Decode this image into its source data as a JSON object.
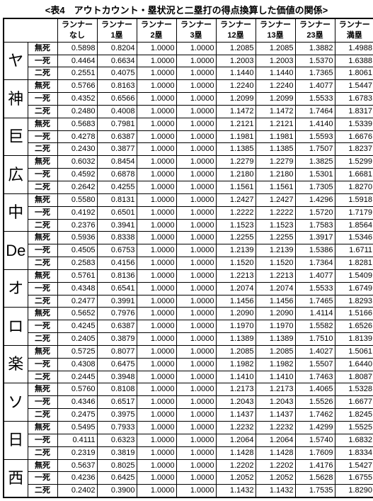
{
  "title": "<表4　アウトカウント・塁状況と二塁打の得点換算した価値の関係>",
  "columns": [
    {
      "l1": "ランナー",
      "l2": "なし"
    },
    {
      "l1": "ランナー",
      "l2": "1塁"
    },
    {
      "l1": "ランナー",
      "l2": "2塁"
    },
    {
      "l1": "ランナー",
      "l2": "3塁"
    },
    {
      "l1": "ランナー",
      "l2": "12塁"
    },
    {
      "l1": "ランナー",
      "l2": "13塁"
    },
    {
      "l1": "ランナー",
      "l2": "23塁"
    },
    {
      "l1": "ランナー",
      "l2": "満塁"
    }
  ],
  "outs": [
    "無死",
    "一死",
    "二死"
  ],
  "teams": [
    {
      "name": "ヤ",
      "rows": [
        [
          "0.5898",
          "0.8204",
          "1.0000",
          "1.0000",
          "1.2085",
          "1.2085",
          "1.3882",
          "1.4988"
        ],
        [
          "0.4464",
          "0.6634",
          "1.0000",
          "1.0000",
          "1.2003",
          "1.2003",
          "1.5370",
          "1.6388"
        ],
        [
          "0.2551",
          "0.4075",
          "1.0000",
          "1.0000",
          "1.1440",
          "1.1440",
          "1.7365",
          "1.8061"
        ]
      ]
    },
    {
      "name": "神",
      "rows": [
        [
          "0.5766",
          "0.8163",
          "1.0000",
          "1.0000",
          "1.2240",
          "1.2240",
          "1.4077",
          "1.5447"
        ],
        [
          "0.4352",
          "0.6566",
          "1.0000",
          "1.0000",
          "1.2099",
          "1.2099",
          "1.5533",
          "1.6783"
        ],
        [
          "0.2480",
          "0.4008",
          "1.0000",
          "1.0000",
          "1.1472",
          "1.1472",
          "1.7464",
          "1.8317"
        ]
      ]
    },
    {
      "name": "巨",
      "rows": [
        [
          "0.5683",
          "0.7981",
          "1.0000",
          "1.0000",
          "1.2121",
          "1.2121",
          "1.4140",
          "1.5339"
        ],
        [
          "0.4278",
          "0.6387",
          "1.0000",
          "1.0000",
          "1.1981",
          "1.1981",
          "1.5593",
          "1.6676"
        ],
        [
          "0.2430",
          "0.3877",
          "1.0000",
          "1.0000",
          "1.1385",
          "1.1385",
          "1.7507",
          "1.8237"
        ]
      ]
    },
    {
      "name": "広",
      "rows": [
        [
          "0.6032",
          "0.8454",
          "1.0000",
          "1.0000",
          "1.2279",
          "1.2279",
          "1.3825",
          "1.5299"
        ],
        [
          "0.4592",
          "0.6878",
          "1.0000",
          "1.0000",
          "1.2180",
          "1.2180",
          "1.5301",
          "1.6681"
        ],
        [
          "0.2642",
          "0.4255",
          "1.0000",
          "1.0000",
          "1.1561",
          "1.1561",
          "1.7305",
          "1.8270"
        ]
      ]
    },
    {
      "name": "中",
      "rows": [
        [
          "0.5580",
          "0.8131",
          "1.0000",
          "1.0000",
          "1.2427",
          "1.2427",
          "1.4296",
          "1.5918"
        ],
        [
          "0.4192",
          "0.6501",
          "1.0000",
          "1.0000",
          "1.2222",
          "1.2222",
          "1.5720",
          "1.7179"
        ],
        [
          "0.2376",
          "0.3941",
          "1.0000",
          "1.0000",
          "1.1523",
          "1.1523",
          "1.7583",
          "1.8564"
        ]
      ]
    },
    {
      "name": "De",
      "rows": [
        [
          "0.5936",
          "0.8338",
          "1.0000",
          "1.0000",
          "1.2255",
          "1.2255",
          "1.3917",
          "1.5346"
        ],
        [
          "0.4505",
          "0.6753",
          "1.0000",
          "1.0000",
          "1.2139",
          "1.2139",
          "1.5386",
          "1.6711"
        ],
        [
          "0.2583",
          "0.4156",
          "1.0000",
          "1.0000",
          "1.1520",
          "1.1520",
          "1.7364",
          "1.8281"
        ]
      ]
    },
    {
      "name": "オ",
      "rows": [
        [
          "0.5761",
          "0.8136",
          "1.0000",
          "1.0000",
          "1.2213",
          "1.2213",
          "1.4077",
          "1.5409"
        ],
        [
          "0.4348",
          "0.6541",
          "1.0000",
          "1.0000",
          "1.2074",
          "1.2074",
          "1.5533",
          "1.6749"
        ],
        [
          "0.2477",
          "0.3991",
          "1.0000",
          "1.0000",
          "1.1456",
          "1.1456",
          "1.7465",
          "1.8293"
        ]
      ]
    },
    {
      "name": "ロ",
      "rows": [
        [
          "0.5652",
          "0.7976",
          "1.0000",
          "1.0000",
          "1.2090",
          "1.2090",
          "1.4114",
          "1.5166"
        ],
        [
          "0.4245",
          "0.6387",
          "1.0000",
          "1.0000",
          "1.1970",
          "1.1970",
          "1.5582",
          "1.6526"
        ],
        [
          "0.2405",
          "0.3879",
          "1.0000",
          "1.0000",
          "1.1389",
          "1.1389",
          "1.7510",
          "1.8139"
        ]
      ]
    },
    {
      "name": "楽",
      "rows": [
        [
          "0.5725",
          "0.8077",
          "1.0000",
          "1.0000",
          "1.2085",
          "1.2085",
          "1.4027",
          "1.5061"
        ],
        [
          "0.4308",
          "0.6475",
          "1.0000",
          "1.0000",
          "1.1982",
          "1.1982",
          "1.5507",
          "1.6440"
        ],
        [
          "0.2445",
          "0.3948",
          "1.0000",
          "1.0000",
          "1.1410",
          "1.1410",
          "1.7463",
          "1.8087"
        ]
      ]
    },
    {
      "name": "ソ",
      "rows": [
        [
          "0.5760",
          "0.8108",
          "1.0000",
          "1.0000",
          "1.2173",
          "1.2173",
          "1.4065",
          "1.5328"
        ],
        [
          "0.4346",
          "0.6517",
          "1.0000",
          "1.0000",
          "1.2043",
          "1.2043",
          "1.5526",
          "1.6677"
        ],
        [
          "0.2475",
          "0.3975",
          "1.0000",
          "1.0000",
          "1.1437",
          "1.1437",
          "1.7462",
          "1.8245"
        ]
      ]
    },
    {
      "name": "日",
      "rows": [
        [
          "0.5495",
          "0.7933",
          "1.0000",
          "1.0000",
          "1.2232",
          "1.2232",
          "1.4299",
          "1.5525"
        ],
        [
          "0.4111",
          "0.6323",
          "1.0000",
          "1.0000",
          "1.2064",
          "1.2064",
          "1.5740",
          "1.6832"
        ],
        [
          "0.2319",
          "0.3819",
          "1.0000",
          "1.0000",
          "1.1428",
          "1.1428",
          "1.7609",
          "1.8334"
        ]
      ]
    },
    {
      "name": "西",
      "rows": [
        [
          "0.5637",
          "0.8025",
          "1.0000",
          "1.0000",
          "1.2202",
          "1.2202",
          "1.4176",
          "1.5427"
        ],
        [
          "0.4236",
          "0.6425",
          "1.0000",
          "1.0000",
          "1.2052",
          "1.2052",
          "1.5628",
          "1.6755"
        ],
        [
          "0.2402",
          "0.3900",
          "1.0000",
          "1.0000",
          "1.1432",
          "1.1432",
          "1.7535",
          "1.8290"
        ]
      ]
    }
  ]
}
